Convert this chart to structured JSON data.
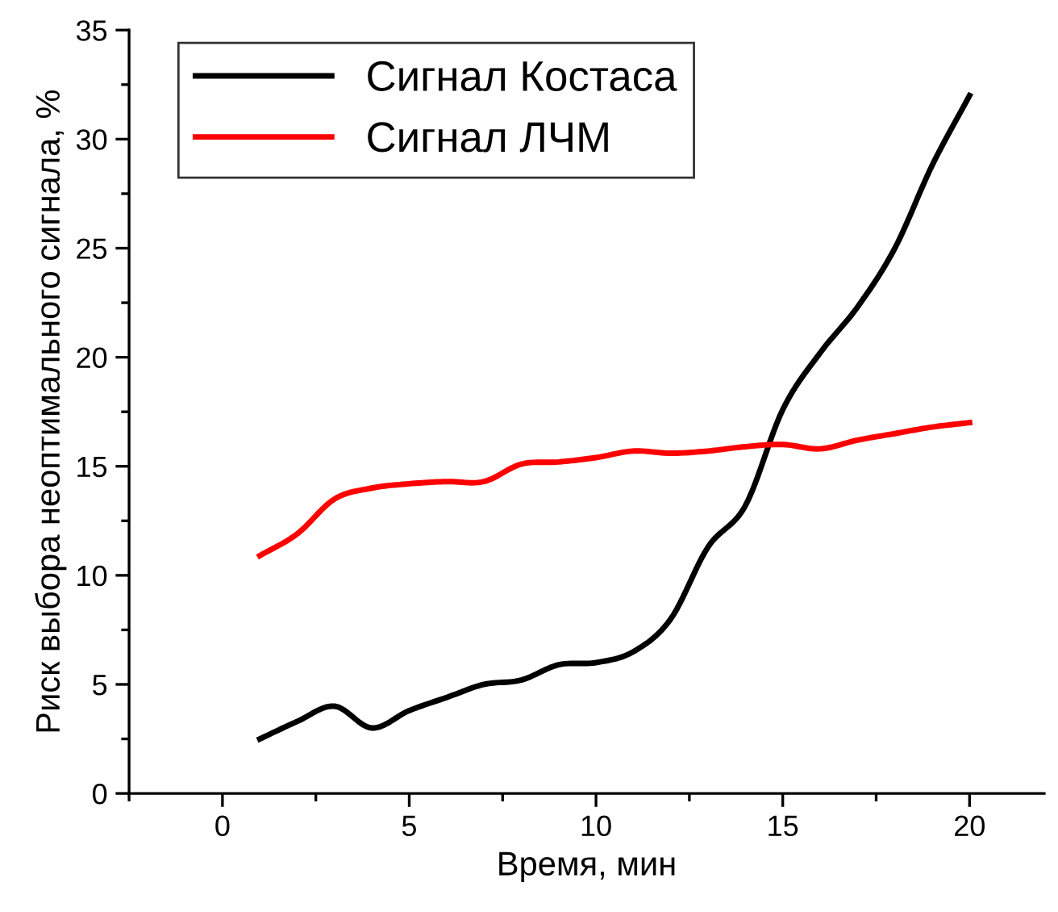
{
  "chart_data": {
    "type": "line",
    "xlabel": "Время, мин",
    "ylabel": "Риск выбора неоптимального сигнала, %",
    "x": [
      1,
      2,
      3,
      4,
      5,
      6,
      7,
      8,
      9,
      10,
      11,
      12,
      13,
      14,
      15,
      16,
      17,
      18,
      19,
      20
    ],
    "series": [
      {
        "name": "Сигнал Костаса",
        "color": "#000000",
        "values": [
          2.5,
          3.3,
          4.0,
          3.0,
          3.8,
          4.4,
          5.0,
          5.2,
          5.9,
          6.0,
          6.5,
          8.0,
          11.3,
          13.2,
          17.6,
          20.2,
          22.3,
          25.0,
          28.8,
          32.0
        ]
      },
      {
        "name": "Сигнал ЛЧМ",
        "color": "#ff0000",
        "values": [
          10.9,
          11.9,
          13.5,
          14.0,
          14.2,
          14.3,
          14.3,
          15.1,
          15.2,
          15.4,
          15.7,
          15.6,
          15.7,
          15.9,
          16.0,
          15.8,
          16.2,
          16.5,
          16.8,
          17.0
        ]
      }
    ],
    "xlim": [
      -2.5,
      22
    ],
    "xticks": [
      {
        "value": -2.5,
        "label": null
      },
      0,
      {
        "value": 2.5,
        "label": null
      },
      5,
      {
        "value": 7.5,
        "label": null
      },
      10,
      {
        "value": 12.5,
        "label": null
      },
      15,
      {
        "value": 17.5,
        "label": null
      },
      20
    ],
    "ylim": [
      0,
      35
    ],
    "yticks": [
      0,
      {
        "value": 2.5,
        "label": null
      },
      5,
      {
        "value": 7.5,
        "label": null
      },
      10,
      {
        "value": 12.5,
        "label": null
      },
      15,
      {
        "value": 17.5,
        "label": null
      },
      20,
      {
        "value": 22.5,
        "label": null
      },
      25,
      {
        "value": 27.5,
        "label": null
      },
      30,
      {
        "value": 32.5,
        "label": null
      },
      35
    ],
    "grid": false,
    "legend": "top left",
    "marker": "none",
    "line_style": "solid"
  }
}
